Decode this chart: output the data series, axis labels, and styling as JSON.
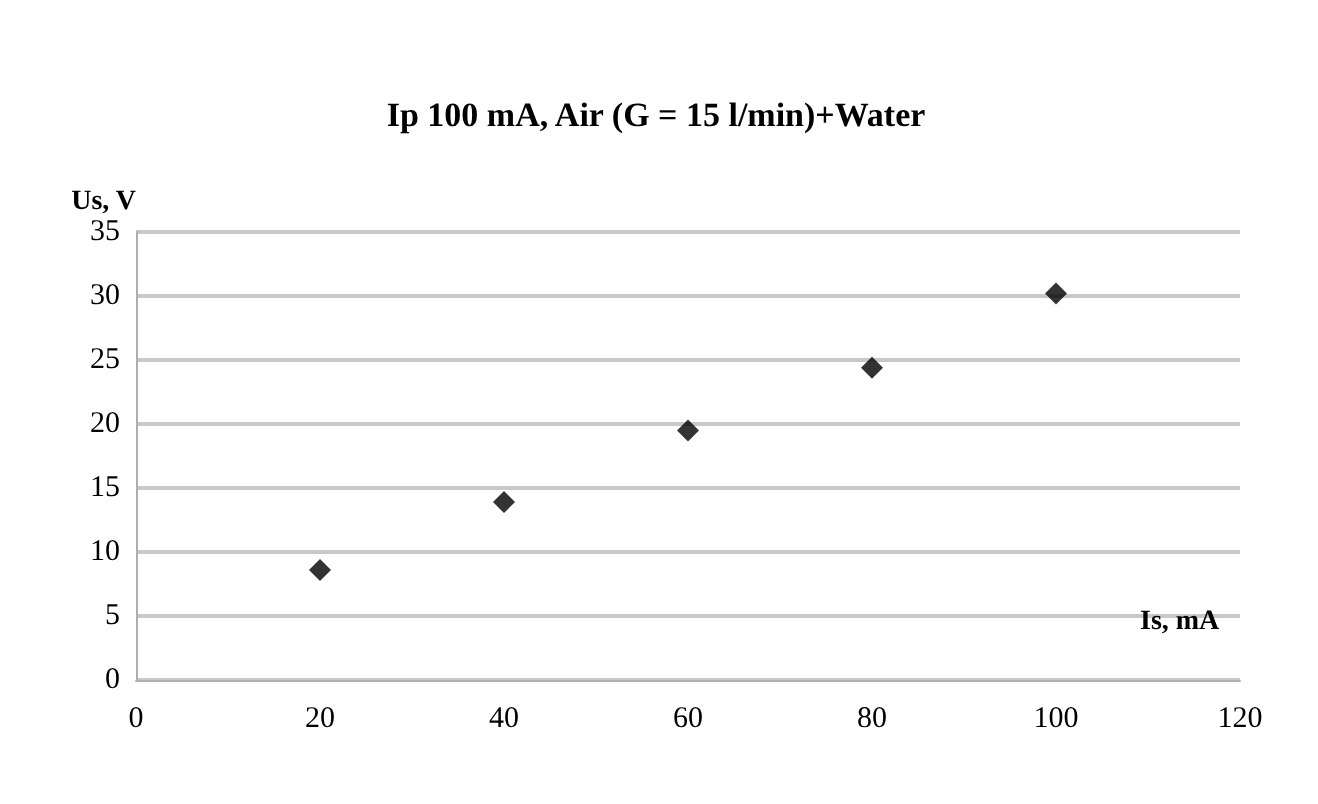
{
  "chart_data": {
    "type": "scatter",
    "title": "Ip 100 mA, Air (G = 15 l/min)+Water",
    "xlabel": "Is, mA",
    "ylabel": "Us, V",
    "x": [
      20,
      40,
      60,
      80,
      100
    ],
    "series": [
      {
        "color": "#000000",
        "values": [
          8.6,
          13.9,
          19.5,
          24.4,
          30.2
        ]
      }
    ],
    "xlim": [
      0,
      120
    ],
    "xticks": [
      0,
      20,
      40,
      60,
      80,
      100,
      120
    ],
    "ylim": [
      0,
      35
    ],
    "yticks": [
      0,
      5,
      10,
      15,
      20,
      25,
      30,
      35
    ],
    "grid": "y",
    "marker": "diamond"
  }
}
